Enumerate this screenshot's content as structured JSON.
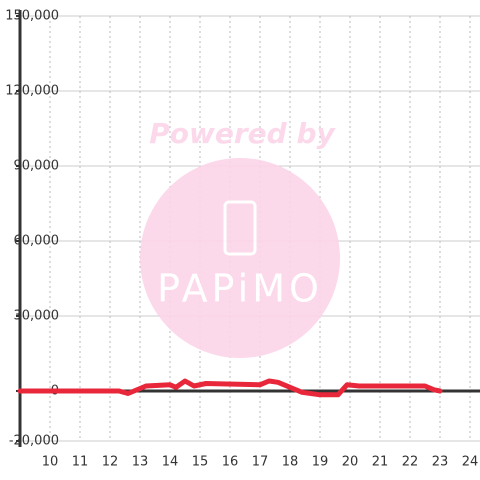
{
  "chart_data": {
    "type": "line",
    "x": [
      9,
      12.3,
      12.6,
      13.2,
      14,
      14.2,
      14.5,
      14.8,
      15.2,
      17,
      17.3,
      17.6,
      18,
      18.4,
      19,
      19.6,
      19.9,
      20.3,
      22.5,
      22.8,
      23
    ],
    "series": [
      {
        "name": "value",
        "color": "#e8283a",
        "values": [
          0,
          0,
          -1000,
          2000,
          2500,
          1500,
          4000,
          2000,
          3000,
          2500,
          4000,
          3500,
          1500,
          -500,
          -1500,
          -1500,
          2500,
          2000,
          2000,
          500,
          0
        ]
      }
    ],
    "xlim": [
      9,
      24.4
    ],
    "xticks": [
      10,
      11,
      12,
      13,
      14,
      15,
      16,
      17,
      18,
      19,
      20,
      21,
      22,
      23,
      24
    ],
    "ylim": [
      -20000,
      150000
    ],
    "yticks": [
      {
        "value": -20000,
        "label": "-20,000"
      },
      0,
      {
        "value": 30000,
        "label": "30,000"
      },
      {
        "value": 60000,
        "label": "60,000"
      },
      {
        "value": 90000,
        "label": "90,000"
      },
      {
        "value": 120000,
        "label": "120,000"
      },
      {
        "value": 150000,
        "label": "150,000"
      }
    ],
    "grid": true
  },
  "watermark": {
    "text": "Powered by",
    "logo": "PAPiMO"
  }
}
